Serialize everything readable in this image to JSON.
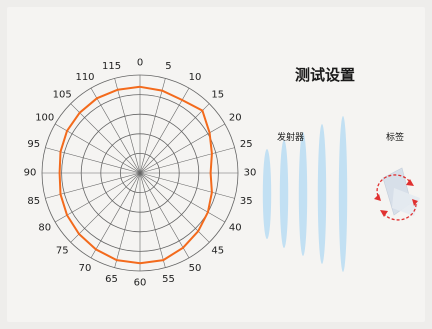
{
  "title": "测试设置",
  "emitter_label": "发射器",
  "tag_label": "标签",
  "colors": {
    "pattern": "#f36a1c",
    "grid": "#666666",
    "wave": "#b9dcf3",
    "arrow": "#e03030",
    "tag": "#d7dfe9"
  },
  "chart_data": {
    "type": "polar-line",
    "angles": [
      0,
      5,
      10,
      15,
      20,
      25,
      30,
      35,
      40,
      45,
      50,
      55,
      60,
      65,
      70,
      75,
      80,
      85,
      90,
      95,
      100,
      105,
      110,
      115
    ],
    "angle_labels": [
      "0",
      "5",
      "10",
      "15",
      "20",
      "25",
      "30",
      "35",
      "40",
      "45",
      "50",
      "55",
      "60",
      "65",
      "70",
      "75",
      "80",
      "85",
      "90",
      "95",
      "100",
      "105",
      "110",
      "115"
    ],
    "rings": 5,
    "rmax": 1.0,
    "series": [
      {
        "values": [
          0.88,
          0.87,
          0.86,
          0.9,
          0.82,
          0.76,
          0.72,
          0.76,
          0.8,
          0.84,
          0.88,
          0.92,
          0.92,
          0.92,
          0.9,
          0.88,
          0.86,
          0.84,
          0.82,
          0.84,
          0.86,
          0.87,
          0.88,
          0.88
        ]
      }
    ]
  }
}
